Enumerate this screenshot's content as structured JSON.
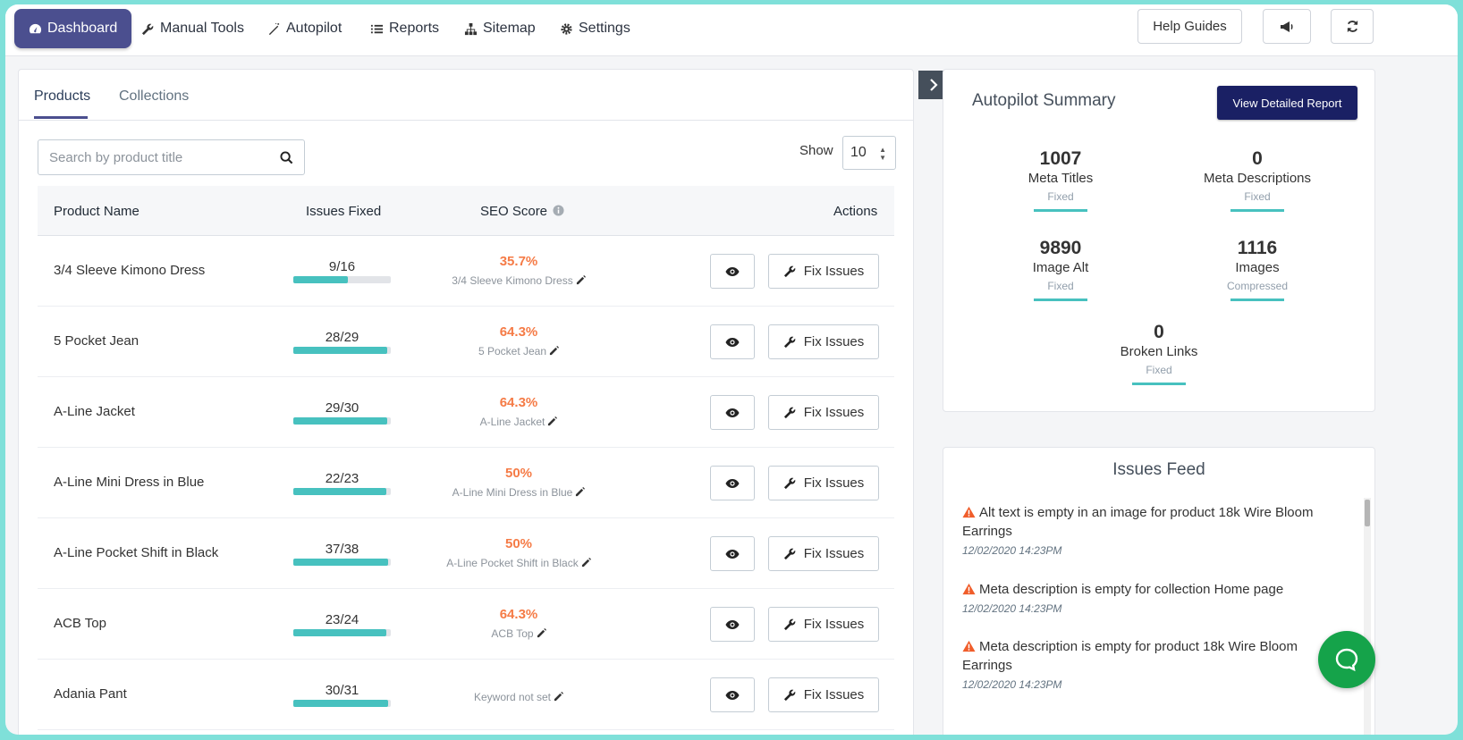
{
  "nav": {
    "items": [
      {
        "label": "Dashboard",
        "icon": "dashboard-icon"
      },
      {
        "label": "Manual Tools",
        "icon": "wrench-icon"
      },
      {
        "label": "Autopilot",
        "icon": "magic-wand-icon"
      },
      {
        "label": "Reports",
        "icon": "list-icon"
      },
      {
        "label": "Sitemap",
        "icon": "sitemap-icon"
      },
      {
        "label": "Settings",
        "icon": "gear-icon"
      }
    ],
    "help_label": "Help Guides",
    "announce_icon": "megaphone-icon",
    "refresh_icon": "refresh-icon"
  },
  "tabs": [
    {
      "label": "Products"
    },
    {
      "label": "Collections"
    }
  ],
  "search": {
    "placeholder": "Search by product title",
    "value": ""
  },
  "show": {
    "label": "Show",
    "value": "10"
  },
  "table": {
    "headers": {
      "name": "Product Name",
      "fixed": "Issues Fixed",
      "score": "SEO Score",
      "actions": "Actions"
    },
    "fix_label": "Fix Issues",
    "rows": [
      {
        "name": "3/4 Sleeve Kimono Dress",
        "fixed": "9/16",
        "progress": 0.5625,
        "score": "35.7%",
        "keyword": "3/4 Sleeve Kimono Dress"
      },
      {
        "name": "5 Pocket Jean",
        "fixed": "28/29",
        "progress": 0.9655,
        "score": "64.3%",
        "keyword": "5 Pocket Jean"
      },
      {
        "name": "A-Line Jacket",
        "fixed": "29/30",
        "progress": 0.9667,
        "score": "64.3%",
        "keyword": "A-Line Jacket"
      },
      {
        "name": "A-Line Mini Dress in Blue",
        "fixed": "22/23",
        "progress": 0.9565,
        "score": "50%",
        "keyword": "A-Line Mini Dress in Blue"
      },
      {
        "name": "A-Line Pocket Shift in Black",
        "fixed": "37/38",
        "progress": 0.9737,
        "score": "50%",
        "keyword": "A-Line Pocket Shift in Black"
      },
      {
        "name": "ACB Top",
        "fixed": "23/24",
        "progress": 0.9583,
        "score": "64.3%",
        "keyword": "ACB Top"
      },
      {
        "name": "Adania Pant",
        "fixed": "30/31",
        "progress": 0.9677,
        "score": "",
        "keyword": "Keyword not set"
      }
    ]
  },
  "summary": {
    "title": "Autopilot Summary",
    "report_button": "View Detailed Report",
    "stats": [
      {
        "num": "1007",
        "label": "Meta Titles",
        "sub": "Fixed"
      },
      {
        "num": "0",
        "label": "Meta Descriptions",
        "sub": "Fixed"
      },
      {
        "num": "9890",
        "label": "Image Alt",
        "sub": "Fixed"
      },
      {
        "num": "1116",
        "label": "Images",
        "sub": "Compressed"
      },
      {
        "num": "0",
        "label": "Broken Links",
        "sub": "Fixed"
      }
    ]
  },
  "feed": {
    "title": "Issues Feed",
    "items": [
      {
        "msg": "Alt text is empty in an image for product 18k Wire Bloom Earrings",
        "time": "12/02/2020 14:23PM"
      },
      {
        "msg": "Meta description is empty for collection Home page",
        "time": "12/02/2020 14:23PM"
      },
      {
        "msg": "Meta description is empty for product 18k Wire Bloom Earrings",
        "time": "12/02/2020 14:23PM"
      }
    ]
  },
  "colors": {
    "accent": "#4b4f8f",
    "teal": "#47c1bf",
    "score": "#f57b46",
    "report_button": "#1a2064",
    "chat": "#15a34a"
  }
}
